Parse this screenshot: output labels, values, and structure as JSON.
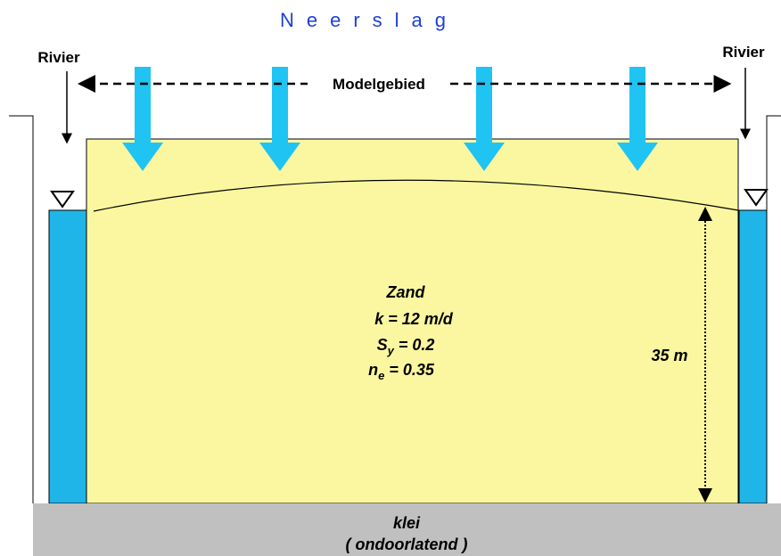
{
  "title": "Neerslag",
  "labels": {
    "river_left": "Rivier",
    "river_right": "Rivier",
    "model_domain": "Modelgebied",
    "thickness": "35 m"
  },
  "material": {
    "name": "Zand",
    "conductivity": "k = 12 m/d",
    "specific_yield": {
      "symbol": "S",
      "subscript": "y",
      "value": " = 0.2"
    },
    "porosity": {
      "symbol": "n",
      "subscript": "e",
      "value": " = 0.35"
    }
  },
  "clay": {
    "name": "klei",
    "property": "( ondoorlatend )"
  }
}
